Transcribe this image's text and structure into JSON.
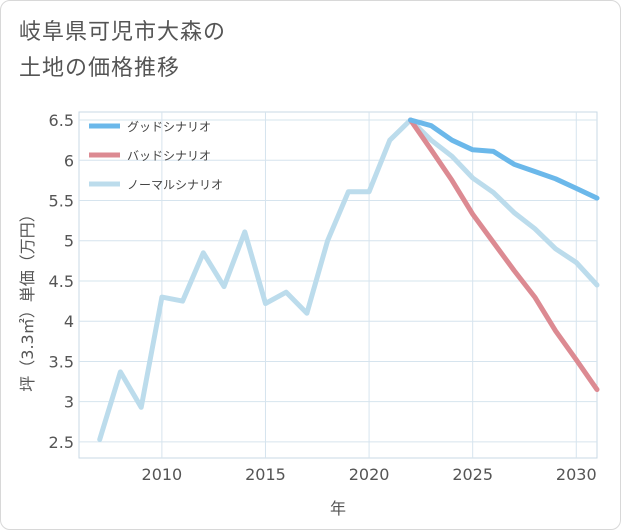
{
  "header": {
    "title_line1": "岐阜県可児市大森の",
    "title_line2": "土地の価格推移"
  },
  "chart_data": {
    "type": "line",
    "title": "岐阜県可児市大森の土地の価格推移",
    "xlabel": "年",
    "ylabel": "坪（3.3㎡）単価（万円）",
    "xlim": [
      2006,
      2031
    ],
    "ylim": [
      2.3,
      6.6
    ],
    "xticks": [
      2010,
      2015,
      2020,
      2025,
      2030
    ],
    "yticks": [
      2.5,
      3,
      3.5,
      4,
      4.5,
      5,
      5.5,
      6,
      6.5
    ],
    "grid": true,
    "legend_position": "top-left",
    "series": [
      {
        "name": "グッドシナリオ",
        "color": "#6bb8ea",
        "x": [
          2022,
          2023,
          2024,
          2025,
          2026,
          2027,
          2028,
          2029,
          2030,
          2031
        ],
        "y": [
          6.5,
          6.43,
          6.25,
          6.13,
          6.11,
          5.95,
          5.86,
          5.77,
          5.65,
          5.53
        ]
      },
      {
        "name": "バッドシナリオ",
        "color": "#dc8a92",
        "x": [
          2022,
          2023,
          2024,
          2025,
          2026,
          2027,
          2028,
          2029,
          2030,
          2031
        ],
        "y": [
          6.5,
          6.13,
          5.75,
          5.33,
          4.98,
          4.63,
          4.3,
          3.88,
          3.52,
          3.15
        ]
      },
      {
        "name": "ノーマルシナリオ",
        "color": "#bcdcec",
        "x": [
          2007,
          2008,
          2009,
          2010,
          2011,
          2012,
          2013,
          2014,
          2015,
          2016,
          2017,
          2018,
          2019,
          2020,
          2021,
          2022,
          2023,
          2024,
          2025,
          2026,
          2027,
          2028,
          2029,
          2030,
          2031
        ],
        "y": [
          2.53,
          3.37,
          2.93,
          4.3,
          4.25,
          4.85,
          4.43,
          5.11,
          4.22,
          4.36,
          4.1,
          5.0,
          5.61,
          5.61,
          6.25,
          6.5,
          6.25,
          6.05,
          5.78,
          5.6,
          5.35,
          5.15,
          4.9,
          4.73,
          4.45
        ]
      }
    ]
  }
}
